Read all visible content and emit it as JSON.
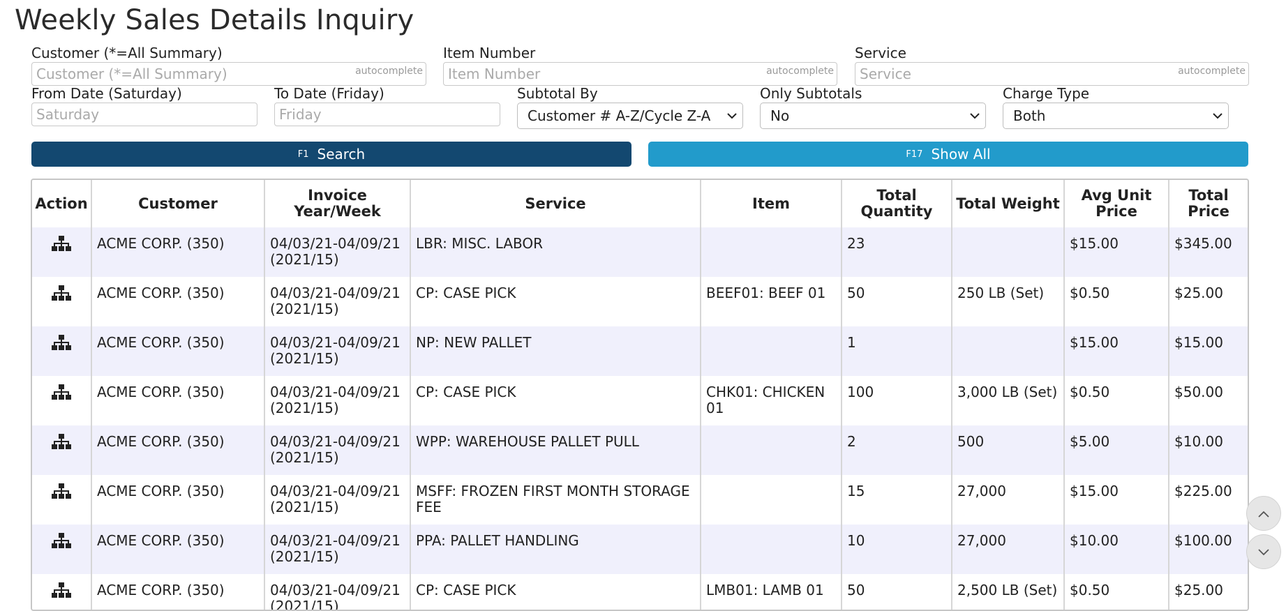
{
  "page": {
    "title": "Weekly Sales Details Inquiry"
  },
  "filters": {
    "customer": {
      "label": "Customer (*=All Summary)",
      "placeholder": "Customer (*=All Summary)",
      "hint": "autocomplete",
      "value": ""
    },
    "item": {
      "label": "Item Number",
      "placeholder": "Item Number",
      "hint": "autocomplete",
      "value": ""
    },
    "service": {
      "label": "Service",
      "placeholder": "Service",
      "hint": "autocomplete",
      "value": ""
    },
    "from_date": {
      "label": "From Date (Saturday)",
      "placeholder": "Saturday",
      "value": ""
    },
    "to_date": {
      "label": "To Date (Friday)",
      "placeholder": "Friday",
      "value": ""
    },
    "subtotal_by": {
      "label": "Subtotal By",
      "value": "Customer # A-Z/Cycle Z-A"
    },
    "only_subtotals": {
      "label": "Only Subtotals",
      "value": "No"
    },
    "charge_type": {
      "label": "Charge Type",
      "value": "Both"
    }
  },
  "buttons": {
    "search": {
      "key": "F1",
      "label": "Search"
    },
    "show_all": {
      "key": "F17",
      "label": "Show All"
    }
  },
  "colors": {
    "search": "#134870",
    "show_all": "#229bcb",
    "row_alt": "#f0f0fc"
  },
  "table": {
    "headers": {
      "action": "Action",
      "customer": "Customer",
      "invoice_week": "Invoice Year/Week",
      "service": "Service",
      "item": "Item",
      "total_quantity": "Total Quantity",
      "total_weight": "Total Weight",
      "avg_unit_price": "Avg Unit Price",
      "total_price": "Total Price"
    },
    "action_icon": "sitemap-icon",
    "rows": [
      {
        "customer": "ACME CORP. (350)",
        "week": "04/03/21-04/09/21",
        "year_week": "(2021/15)",
        "service": "LBR: MISC. LABOR",
        "item": "",
        "qty": "23",
        "weight": "",
        "avg_price": "$15.00",
        "total_price": "$345.00"
      },
      {
        "customer": "ACME CORP. (350)",
        "week": "04/03/21-04/09/21",
        "year_week": "(2021/15)",
        "service": "CP: CASE PICK",
        "item": "BEEF01: BEEF 01",
        "qty": "50",
        "weight": "250 LB (Set)",
        "avg_price": "$0.50",
        "total_price": "$25.00"
      },
      {
        "customer": "ACME CORP. (350)",
        "week": "04/03/21-04/09/21",
        "year_week": "(2021/15)",
        "service": "NP: NEW PALLET",
        "item": "",
        "qty": "1",
        "weight": "",
        "avg_price": "$15.00",
        "total_price": "$15.00"
      },
      {
        "customer": "ACME CORP. (350)",
        "week": "04/03/21-04/09/21",
        "year_week": "(2021/15)",
        "service": "CP: CASE PICK",
        "item": "CHK01: CHICKEN 01",
        "qty": "100",
        "weight": "3,000 LB (Set)",
        "avg_price": "$0.50",
        "total_price": "$50.00"
      },
      {
        "customer": "ACME CORP. (350)",
        "week": "04/03/21-04/09/21",
        "year_week": "(2021/15)",
        "service": "WPP: WAREHOUSE PALLET PULL",
        "item": "",
        "qty": "2",
        "weight": "500",
        "avg_price": "$5.00",
        "total_price": "$10.00"
      },
      {
        "customer": "ACME CORP. (350)",
        "week": "04/03/21-04/09/21",
        "year_week": "(2021/15)",
        "service": "MSFF: FROZEN FIRST MONTH STORAGE FEE",
        "item": "",
        "qty": "15",
        "weight": "27,000",
        "avg_price": "$15.00",
        "total_price": "$225.00"
      },
      {
        "customer": "ACME CORP. (350)",
        "week": "04/03/21-04/09/21",
        "year_week": "(2021/15)",
        "service": "PPA: PALLET HANDLING",
        "item": "",
        "qty": "10",
        "weight": "27,000",
        "avg_price": "$10.00",
        "total_price": "$100.00"
      },
      {
        "customer": "ACME CORP. (350)",
        "week": "04/03/21-04/09/21",
        "year_week": "(2021/15)",
        "service": "CP: CASE PICK",
        "item": "LMB01: LAMB 01",
        "qty": "50",
        "weight": "2,500 LB (Set)",
        "avg_price": "$0.50",
        "total_price": "$25.00"
      }
    ]
  },
  "scroll": {
    "up_icon": "chevron-up-icon",
    "down_icon": "chevron-down-icon"
  }
}
